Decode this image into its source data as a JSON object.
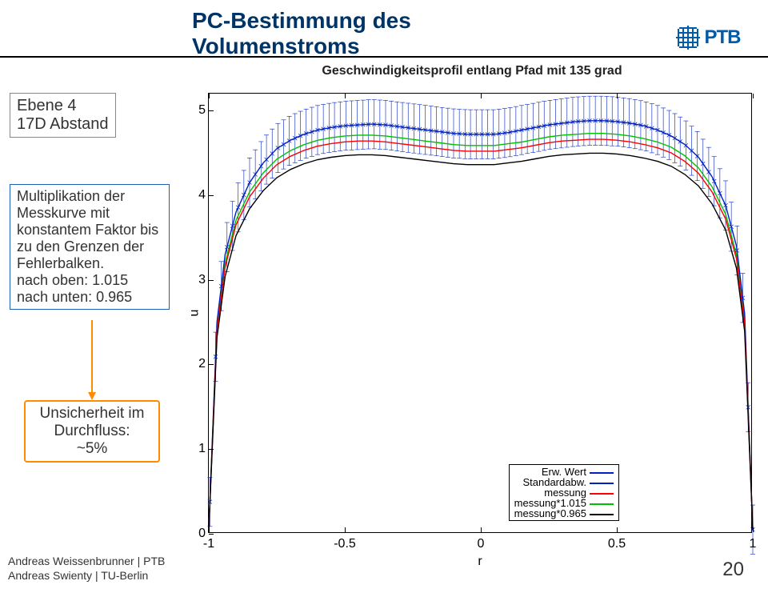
{
  "title": "PC-Bestimmung des Volumenstroms",
  "logo_text": "PTB",
  "box1_line1": "Ebene 4",
  "box1_line2": "17D Abstand",
  "box2_line1": "Multiplikation der",
  "box2_line2": "Messkurve mit",
  "box2_line3": "konstantem Faktor bis",
  "box2_line4": "zu den Grenzen der",
  "box2_line5": "Fehlerbalken.",
  "box2_line6": "nach oben: 1.015",
  "box2_line7": "nach unten: 0.965",
  "box3_line1": "Unsicherheit im",
  "box3_line2": "Durchfluss:",
  "box3_line3": "~5%",
  "footer_line1": "Andreas Weissenbrunner | PTB",
  "footer_line2": "Andreas Swienty | TU-Berlin",
  "page_num": "20",
  "chart": {
    "type": "line",
    "title": "Geschwindigkeitsprofil entlang Pfad mit 135 grad",
    "xlabel": "r",
    "ylabel": "u",
    "xlim": [
      -1,
      1
    ],
    "ylim": [
      0,
      5.2
    ],
    "ytick_vals": [
      0,
      1,
      2,
      3,
      4,
      5
    ],
    "ytick_labels": [
      "0",
      "1",
      "2",
      "3",
      "4",
      "5"
    ],
    "xtick_vals": [
      -1,
      -0.5,
      0,
      0.5,
      1
    ],
    "xtick_labels": [
      "-1",
      "-0.5",
      "0",
      "0.5",
      "1"
    ],
    "background_color": "#ffffff",
    "colors": {
      "erw": "#0020c0",
      "std": "#0020c0",
      "messung": "#ff0000",
      "m1015": "#00c000",
      "m0965": "#000000",
      "cross": "#0020c0"
    },
    "legend": [
      {
        "label": "Erw. Wert",
        "color": "#0020c0"
      },
      {
        "label": "Standardabw.",
        "color": "#0020c0"
      },
      {
        "label": "messung",
        "color": "#ff0000"
      },
      {
        "label": "messung*1.015",
        "color": "#00c000"
      },
      {
        "label": "messung*0.965",
        "color": "#000000"
      }
    ],
    "series_erw": [
      [
        -1,
        0.05
      ],
      [
        -0.97,
        2.5
      ],
      [
        -0.94,
        3.3
      ],
      [
        -0.9,
        3.8
      ],
      [
        -0.85,
        4.15
      ],
      [
        -0.8,
        4.38
      ],
      [
        -0.75,
        4.55
      ],
      [
        -0.7,
        4.65
      ],
      [
        -0.65,
        4.72
      ],
      [
        -0.6,
        4.77
      ],
      [
        -0.55,
        4.8
      ],
      [
        -0.5,
        4.82
      ],
      [
        -0.45,
        4.83
      ],
      [
        -0.4,
        4.84
      ],
      [
        -0.35,
        4.83
      ],
      [
        -0.3,
        4.81
      ],
      [
        -0.25,
        4.79
      ],
      [
        -0.2,
        4.77
      ],
      [
        -0.15,
        4.75
      ],
      [
        -0.1,
        4.73
      ],
      [
        -0.05,
        4.72
      ],
      [
        0,
        4.72
      ],
      [
        0.05,
        4.72
      ],
      [
        0.1,
        4.74
      ],
      [
        0.15,
        4.77
      ],
      [
        0.2,
        4.8
      ],
      [
        0.25,
        4.83
      ],
      [
        0.3,
        4.85
      ],
      [
        0.35,
        4.87
      ],
      [
        0.4,
        4.88
      ],
      [
        0.45,
        4.88
      ],
      [
        0.5,
        4.87
      ],
      [
        0.55,
        4.85
      ],
      [
        0.6,
        4.82
      ],
      [
        0.65,
        4.77
      ],
      [
        0.7,
        4.7
      ],
      [
        0.75,
        4.6
      ],
      [
        0.8,
        4.45
      ],
      [
        0.85,
        4.22
      ],
      [
        0.9,
        3.88
      ],
      [
        0.94,
        3.4
      ],
      [
        0.97,
        2.6
      ],
      [
        1,
        0.05
      ]
    ],
    "series_messung": [
      [
        -1,
        0.05
      ],
      [
        -0.97,
        2.4
      ],
      [
        -0.94,
        3.15
      ],
      [
        -0.9,
        3.65
      ],
      [
        -0.85,
        3.98
      ],
      [
        -0.8,
        4.2
      ],
      [
        -0.75,
        4.36
      ],
      [
        -0.7,
        4.46
      ],
      [
        -0.65,
        4.53
      ],
      [
        -0.6,
        4.58
      ],
      [
        -0.55,
        4.61
      ],
      [
        -0.5,
        4.63
      ],
      [
        -0.45,
        4.64
      ],
      [
        -0.4,
        4.64
      ],
      [
        -0.35,
        4.63
      ],
      [
        -0.3,
        4.61
      ],
      [
        -0.25,
        4.59
      ],
      [
        -0.2,
        4.57
      ],
      [
        -0.15,
        4.55
      ],
      [
        -0.1,
        4.53
      ],
      [
        -0.05,
        4.52
      ],
      [
        0,
        4.52
      ],
      [
        0.05,
        4.52
      ],
      [
        0.1,
        4.54
      ],
      [
        0.15,
        4.56
      ],
      [
        0.2,
        4.59
      ],
      [
        0.25,
        4.62
      ],
      [
        0.3,
        4.64
      ],
      [
        0.35,
        4.65
      ],
      [
        0.4,
        4.66
      ],
      [
        0.45,
        4.66
      ],
      [
        0.5,
        4.65
      ],
      [
        0.55,
        4.63
      ],
      [
        0.6,
        4.6
      ],
      [
        0.65,
        4.56
      ],
      [
        0.7,
        4.5
      ],
      [
        0.75,
        4.4
      ],
      [
        0.8,
        4.26
      ],
      [
        0.85,
        4.04
      ],
      [
        0.9,
        3.72
      ],
      [
        0.94,
        3.25
      ],
      [
        0.97,
        2.48
      ],
      [
        1,
        0.05
      ]
    ],
    "error_dx": 0.29,
    "error_x": [
      -0.996,
      -0.975,
      -0.954,
      -0.933,
      -0.913,
      -0.892,
      -0.871,
      -0.85,
      -0.829,
      -0.808,
      -0.788,
      -0.767,
      -0.746,
      -0.725,
      -0.704,
      -0.683,
      -0.663,
      -0.642,
      -0.621,
      -0.6,
      -0.579,
      -0.558,
      -0.538,
      -0.517,
      -0.496,
      -0.475,
      -0.454,
      -0.433,
      -0.413,
      -0.392,
      -0.371,
      -0.35,
      -0.329,
      -0.308,
      -0.288,
      -0.267,
      -0.246,
      -0.225,
      -0.204,
      -0.183,
      -0.163,
      -0.142,
      -0.121,
      -0.1,
      -0.079,
      -0.058,
      -0.038,
      -0.017,
      0.004,
      0.025,
      0.046,
      0.067,
      0.088,
      0.108,
      0.129,
      0.15,
      0.171,
      0.192,
      0.213,
      0.233,
      0.254,
      0.275,
      0.296,
      0.317,
      0.338,
      0.358,
      0.379,
      0.4,
      0.421,
      0.442,
      0.463,
      0.483,
      0.504,
      0.525,
      0.546,
      0.567,
      0.588,
      0.608,
      0.629,
      0.65,
      0.671,
      0.692,
      0.713,
      0.733,
      0.754,
      0.775,
      0.796,
      0.817,
      0.838,
      0.858,
      0.879,
      0.9,
      0.921,
      0.942,
      0.963,
      0.983,
      1.0
    ]
  }
}
